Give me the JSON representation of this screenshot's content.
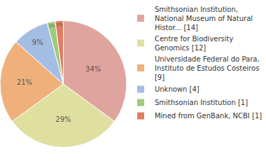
{
  "chart_data": {
    "type": "pie",
    "labels": [
      "Smithsonian Institution, National Museum of Natural Histor... [14]",
      "Centre for Biodiversity Genomics [12]",
      "Universidade Federal do Para, Instituto de Estudos Costeiros [9]",
      "Unknown [4]",
      "Smithsonian Institution [1]",
      "Mined from GenBank, NCBI [1]"
    ],
    "values": [
      34,
      29,
      21,
      9,
      2,
      2
    ],
    "value_labels": [
      "34%",
      "29%",
      "21%",
      "9%",
      "2%",
      "2%"
    ],
    "colors": [
      "#e0a49e",
      "#dfe0a0",
      "#f0b07c",
      "#a3bde3",
      "#9ecb7d",
      "#e27c60"
    ],
    "legend": "upper right"
  }
}
